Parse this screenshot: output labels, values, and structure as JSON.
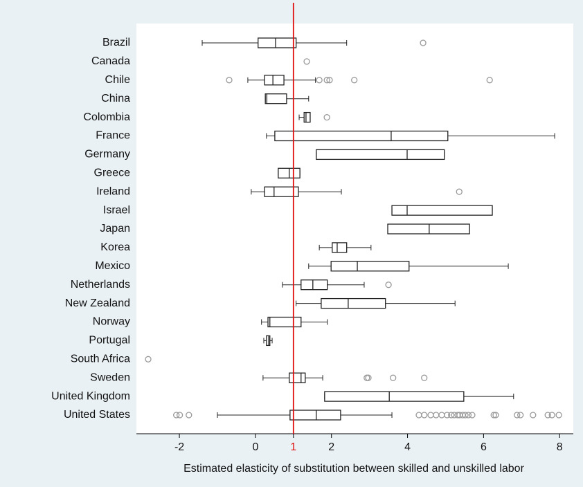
{
  "chart_data": {
    "type": "box",
    "xlabel": "Estimated elasticity of substitution between skilled and unskilled labor",
    "categories": [
      "Brazil",
      "Canada",
      "Chile",
      "China",
      "Colombia",
      "France",
      "Germany",
      "Greece",
      "Ireland",
      "Israel",
      "Japan",
      "Korea",
      "Mexico",
      "Netherlands",
      "New Zealand",
      "Norway",
      "Portugal",
      "South Africa",
      "Sweden",
      "United Kingdom",
      "United States"
    ],
    "min": [
      -1.4,
      null,
      -0.2,
      0.26,
      1.15,
      0.29,
      1.6,
      0.6,
      -0.11,
      3.59,
      3.48,
      1.68,
      1.4,
      0.71,
      1.07,
      0.16,
      0.22,
      null,
      0.2,
      1.82,
      -1.0
    ],
    "q1": [
      0.07,
      null,
      0.24,
      0.26,
      1.28,
      0.51,
      1.6,
      0.6,
      0.24,
      3.59,
      3.48,
      2.02,
      1.99,
      1.2,
      1.73,
      0.33,
      0.29,
      null,
      0.89,
      1.82,
      0.91
    ],
    "median": [
      0.53,
      null,
      0.46,
      0.3,
      1.33,
      3.57,
      3.99,
      0.89,
      0.49,
      3.99,
      4.57,
      2.15,
      2.68,
      1.51,
      2.44,
      0.38,
      0.35,
      null,
      1.2,
      3.52,
      1.6
    ],
    "q3": [
      1.07,
      null,
      0.75,
      0.82,
      1.44,
      5.06,
      4.97,
      1.17,
      1.13,
      6.23,
      5.63,
      2.4,
      4.04,
      1.89,
      3.42,
      1.2,
      0.38,
      null,
      1.31,
      5.48,
      2.24
    ],
    "max": [
      2.4,
      null,
      1.58,
      1.4,
      1.44,
      7.87,
      4.97,
      1.17,
      2.26,
      6.23,
      5.63,
      3.04,
      6.65,
      2.86,
      5.25,
      1.89,
      0.44,
      null,
      1.77,
      6.79,
      3.59
    ],
    "outliers": [
      [
        4.41
      ],
      [
        1.35
      ],
      [
        -0.69,
        1.68,
        1.88,
        1.95,
        2.6,
        6.16
      ],
      [],
      [
        1.88
      ],
      [],
      [],
      [],
      [
        5.36
      ],
      [],
      [],
      [],
      [],
      [
        3.5
      ],
      [],
      [],
      [],
      [
        -2.82
      ],
      [
        2.93,
        2.97,
        3.62,
        4.44
      ],
      [],
      [
        -2.08,
        -1.99,
        -1.75,
        4.3,
        4.44,
        4.61,
        4.75,
        4.9,
        5.04,
        5.15,
        5.23,
        5.32,
        5.37,
        5.45,
        5.52,
        5.6,
        5.7,
        6.27,
        6.32,
        6.88,
        6.97,
        7.3,
        7.69,
        7.8,
        7.98
      ]
    ],
    "reference_line": {
      "value": 1,
      "color": "#e01010"
    },
    "xlim": [
      -3.13,
      8.36
    ],
    "xticks": [
      -2,
      0,
      1,
      2,
      4,
      6,
      8
    ],
    "box_color": "#222222",
    "outlier_color": "#999999"
  }
}
